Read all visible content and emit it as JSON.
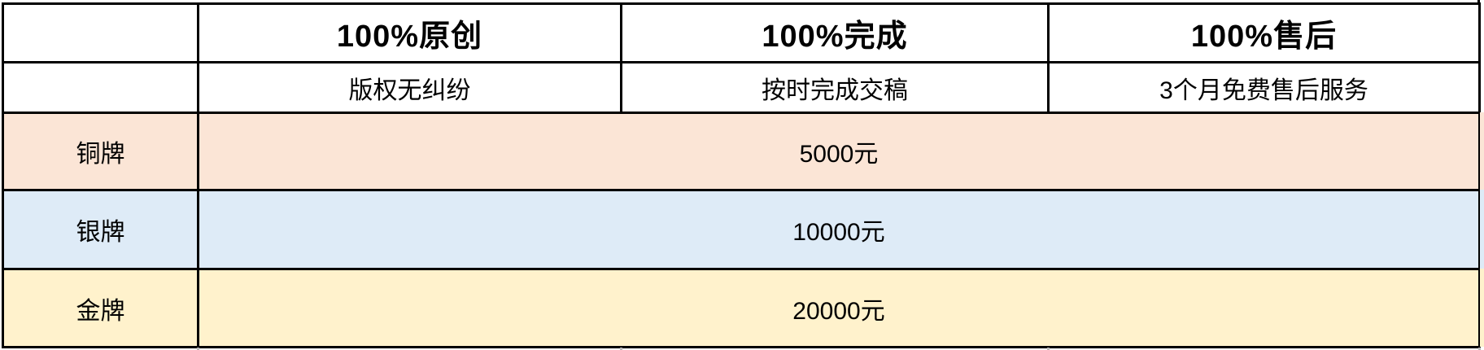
{
  "table": {
    "border_color": "#000000",
    "header_row": {
      "cells": [
        "",
        "100%原创",
        "100%完成",
        "100%售后"
      ]
    },
    "sub_header_row": {
      "cells": [
        "",
        "版权无纠纷",
        "按时完成交稿",
        "3个月免费售后服务"
      ]
    },
    "tiers": [
      {
        "name": "铜牌",
        "price": "5000元",
        "color": "#FBE5D6"
      },
      {
        "name": "银牌",
        "price": "10000元",
        "color": "#DEEBF7"
      },
      {
        "name": "金牌",
        "price": "20000元",
        "color": "#FFF2CC"
      }
    ]
  }
}
